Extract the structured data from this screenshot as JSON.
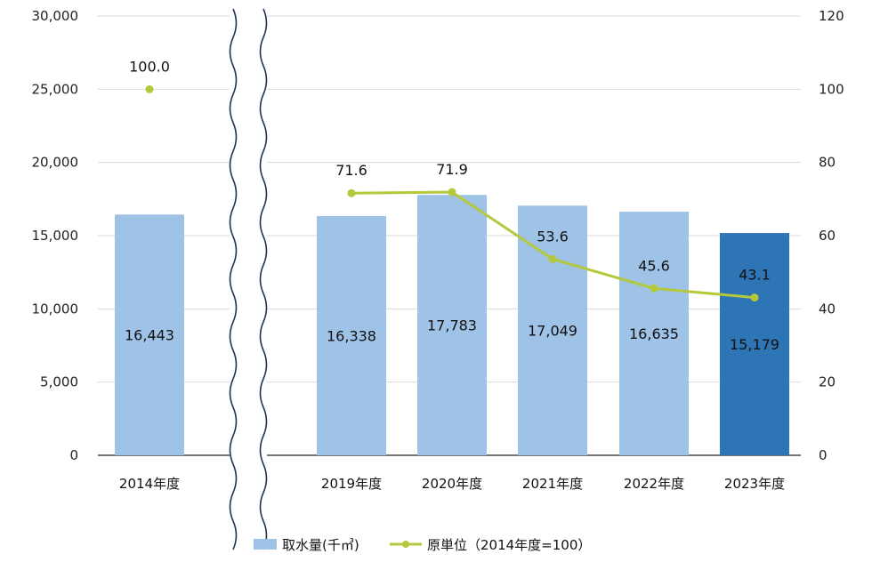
{
  "chart_data": {
    "type": "bar",
    "categories": [
      "2014年度",
      "2019年度",
      "2020年度",
      "2021年度",
      "2022年度",
      "2023年度"
    ],
    "series": [
      {
        "name": "取水量(千㎥)",
        "kind": "bar",
        "axis": "left",
        "values": [
          16443,
          16338,
          17783,
          17049,
          16635,
          15179
        ],
        "value_labels": [
          "16,443",
          "16,338",
          "17,783",
          "17,049",
          "16,635",
          "15,179"
        ]
      },
      {
        "name": "原単位（2014年度=100）",
        "kind": "line",
        "axis": "right",
        "values": [
          100.0,
          71.6,
          71.9,
          53.6,
          45.6,
          43.1
        ],
        "value_labels": [
          "100.0",
          "71.6",
          "71.9",
          "53.6",
          "45.6",
          "43.1"
        ]
      }
    ],
    "y_left": {
      "ylim": [
        0,
        30000
      ],
      "ticks": [
        "0",
        "5,000",
        "10,000",
        "15,000",
        "20,000",
        "25,000",
        "30,000"
      ]
    },
    "y_right": {
      "ylim": [
        0,
        120
      ],
      "ticks": [
        "0",
        "20",
        "40",
        "60",
        "80",
        "100",
        "120"
      ]
    },
    "axis_break": "between 2014年度 and 2019年度",
    "grid": true,
    "legend": "bottom-center",
    "colors": {
      "bar": "#9fc3e7",
      "bar_highlight": "#2e75b6",
      "line": "#b5c73a",
      "grid": "#d9d9d9"
    }
  }
}
